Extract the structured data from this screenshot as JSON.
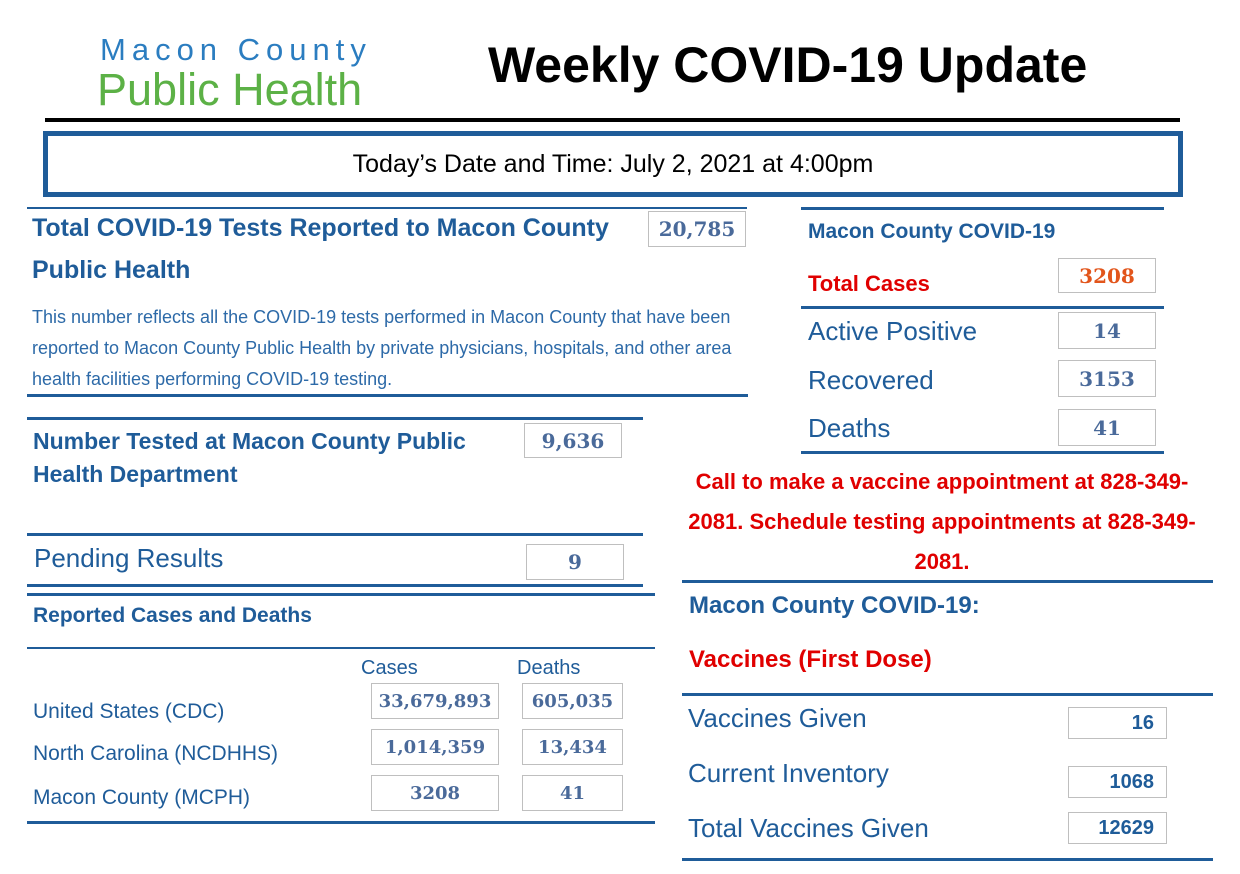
{
  "header": {
    "logo_line1": "Macon County",
    "logo_line2": "Public Health",
    "title": "Weekly COVID-19 Update"
  },
  "date_bar": {
    "text": "Today’s Date and Time:  July 2, 2021 at 4:00pm"
  },
  "tests": {
    "heading_line1": "Total COVID-19 Tests Reported to Macon County",
    "heading_line2": "Public Health",
    "value": "20,785",
    "description": "This number reflects all the COVID-19 tests performed in Macon County that have been reported to Macon County Public Health by private physicians, hospitals, and other area health facilities performing COVID-19 testing."
  },
  "tested_mcph": {
    "heading_line1": "Number Tested at Macon County Public",
    "heading_line2": "Health Department",
    "value": "9,636"
  },
  "pending": {
    "label": "Pending Results",
    "value": "9"
  },
  "reported": {
    "heading": "Reported Cases and Deaths",
    "col_cases": "Cases",
    "col_deaths": "Deaths",
    "rows": [
      {
        "label": "United States (CDC)",
        "cases": "33,679,893",
        "deaths": "605,035"
      },
      {
        "label": "North Carolina (NCDHHS)",
        "cases": "1,014,359",
        "deaths": "13,434"
      },
      {
        "label": "Macon County (MCPH)",
        "cases": "3208",
        "deaths": "41"
      }
    ]
  },
  "county_stats": {
    "heading": "Macon County COVID-19",
    "total_label": "Total Cases",
    "total_value": "3208",
    "rows": [
      {
        "label": "Active Positive",
        "value": "14"
      },
      {
        "label": "Recovered",
        "value": "3153"
      },
      {
        "label": "Deaths",
        "value": "41"
      }
    ]
  },
  "callout": {
    "text": "Call to make a vaccine appointment at 828-349-2081. Schedule testing appointments at 828-349-2081."
  },
  "vaccines": {
    "heading": "Macon County COVID-19:",
    "subheading": "Vaccines (First Dose)",
    "rows": [
      {
        "label": "Vaccines Given",
        "value": "16"
      },
      {
        "label": "Current Inventory",
        "value": "1068"
      },
      {
        "label": "Total Vaccines Given",
        "value": "12629"
      }
    ]
  },
  "colors": {
    "brand_blue": "#1f5c99",
    "brand_green": "#5cb146",
    "alert_red": "#e00000"
  }
}
